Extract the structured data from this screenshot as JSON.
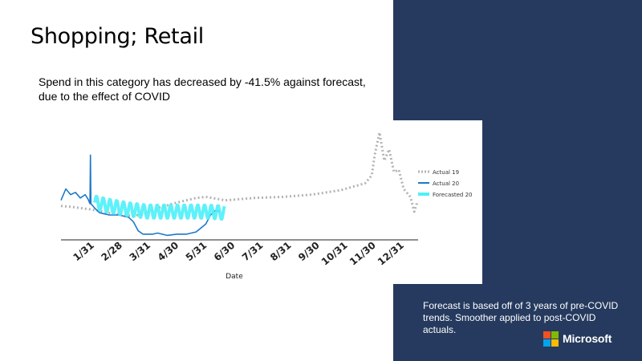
{
  "slide": {
    "title": "Shopping; Retail",
    "subtitle": "Spend in this category has decreased by -41.5% against forecast, due to the effect of COVID",
    "note": "Forecast is based off of 3 years of pre-COVID trends. Smoother applied to post-COVID actuals.",
    "brand": "Microsoft",
    "colors": {
      "panel": "#253a5e",
      "ms_red": "#f25022",
      "ms_green": "#7fba00",
      "ms_blue": "#00a4ef",
      "ms_yellow": "#ffb900"
    }
  },
  "chart_data": {
    "type": "line",
    "xlabel": "Date",
    "ylabel": "",
    "x_ticks": [
      "1/31",
      "2/28",
      "3/31",
      "4/30",
      "5/31",
      "6/30",
      "7/31",
      "8/31",
      "9/30",
      "10/31",
      "11/30",
      "12/31"
    ],
    "x_range_days": [
      0,
      370
    ],
    "y_range": [
      0,
      100
    ],
    "grid": false,
    "legend_position": "right",
    "series": [
      {
        "name": "Actual 19",
        "color": "#b3b3b3",
        "style": "dashed",
        "points": [
          [
            0,
            30
          ],
          [
            12,
            29
          ],
          [
            30,
            27
          ],
          [
            55,
            23
          ],
          [
            75,
            21
          ],
          [
            90,
            24
          ],
          [
            100,
            28
          ],
          [
            120,
            33
          ],
          [
            140,
            37
          ],
          [
            150,
            38
          ],
          [
            170,
            35
          ],
          [
            200,
            37
          ],
          [
            230,
            38
          ],
          [
            260,
            40
          ],
          [
            290,
            44
          ],
          [
            315,
            50
          ],
          [
            322,
            57
          ],
          [
            325,
            75
          ],
          [
            330,
            95
          ],
          [
            335,
            70
          ],
          [
            340,
            80
          ],
          [
            345,
            60
          ],
          [
            350,
            62
          ],
          [
            355,
            45
          ],
          [
            362,
            38
          ],
          [
            366,
            25
          ],
          [
            369,
            33
          ]
        ]
      },
      {
        "name": "Actual 20",
        "color": "#1f78c8",
        "style": "solid",
        "points": [
          [
            0,
            35
          ],
          [
            5,
            45
          ],
          [
            10,
            40
          ],
          [
            15,
            42
          ],
          [
            20,
            37
          ],
          [
            25,
            40
          ],
          [
            28,
            36
          ],
          [
            30,
            32
          ],
          [
            30.5,
            75
          ],
          [
            31,
            32
          ],
          [
            35,
            28
          ],
          [
            40,
            24
          ],
          [
            50,
            22
          ],
          [
            60,
            22
          ],
          [
            70,
            20
          ],
          [
            75,
            16
          ],
          [
            80,
            8
          ],
          [
            85,
            5
          ],
          [
            95,
            5
          ],
          [
            100,
            6
          ],
          [
            110,
            4
          ],
          [
            120,
            5
          ],
          [
            130,
            5
          ],
          [
            140,
            7
          ],
          [
            150,
            14
          ],
          [
            155,
            22
          ],
          [
            160,
            26
          ],
          [
            165,
            25
          ]
        ]
      },
      {
        "name": "Forecasted 20",
        "color": "#4ef0f8",
        "style": "oscillating",
        "points": [
          [
            35,
            33
          ],
          [
            50,
            30
          ],
          [
            70,
            27
          ],
          [
            90,
            25
          ],
          [
            110,
            25
          ],
          [
            130,
            25
          ],
          [
            150,
            25
          ],
          [
            170,
            24
          ]
        ]
      }
    ]
  }
}
